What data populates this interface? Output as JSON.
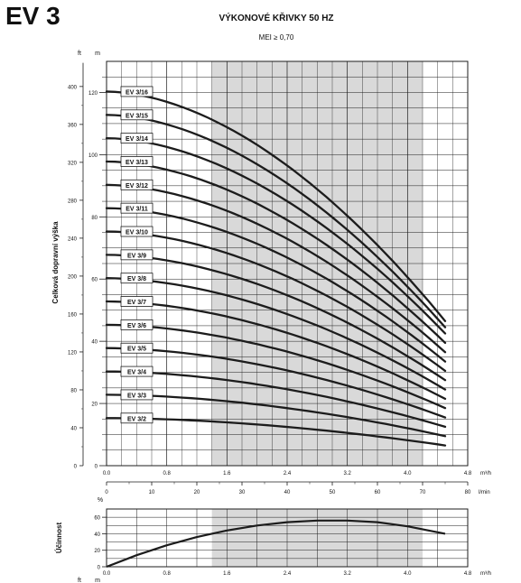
{
  "header": {
    "model": "EV 3",
    "title": "VÝKONOVÉ KŘIVKY 50 HZ",
    "subtitle": "MEI ≥ 0,70"
  },
  "colors": {
    "curve": "#1c1c1c",
    "grid": "#1c1c1c",
    "shade": "#d9d9d9",
    "background": "#ffffff"
  },
  "chart_data": [
    {
      "type": "line",
      "name": "head-curves",
      "ylabel": "Celková dopravní výška",
      "x_unit": "m³/h",
      "y_unit_left_outer": "ft",
      "y_unit_left_inner": "m",
      "xlim": [
        0,
        4.8
      ],
      "ylim": [
        0,
        130
      ],
      "x_ticks": [
        0.0,
        0.8,
        1.6,
        2.4,
        3.2,
        4.0,
        4.8
      ],
      "x_tick_labels": [
        "0.0",
        "0.8",
        "1.6",
        "2.4",
        "3.2",
        "4.0",
        "4.8"
      ],
      "y_ticks_m": [
        0,
        20,
        40,
        60,
        80,
        100,
        120
      ],
      "y_tick_labels_m": [
        "0",
        "20",
        "40",
        "60",
        "80",
        "100",
        "120"
      ],
      "y_ticks_ft": [
        0,
        40,
        80,
        120,
        160,
        200,
        240,
        280,
        320,
        360,
        400
      ],
      "y_tick_labels_ft": [
        "0",
        "40",
        "80",
        "120",
        "160",
        "200",
        "240",
        "280",
        "320",
        "360",
        "400"
      ],
      "secondary_x": {
        "unit": "l/min",
        "lim": [
          0,
          80
        ],
        "ticks": [
          0,
          10,
          20,
          30,
          40,
          50,
          60,
          70,
          80
        ],
        "tick_labels": [
          "0",
          "10",
          "20",
          "30",
          "40",
          "50",
          "60",
          "70",
          "80"
        ]
      },
      "recommended_range": [
        1.4,
        4.2
      ],
      "grid": true,
      "series": [
        {
          "name": "EV 3/2",
          "x": [
            0,
            4.5
          ],
          "shutoff_head": 15.3,
          "end_head": 6.5
        },
        {
          "name": "EV 3/3",
          "x": [
            0,
            4.5
          ],
          "shutoff_head": 22.8,
          "end_head": 9.5
        },
        {
          "name": "EV 3/4",
          "x": [
            0,
            4.5
          ],
          "shutoff_head": 30.3,
          "end_head": 12.5
        },
        {
          "name": "EV 3/5",
          "x": [
            0,
            4.5
          ],
          "shutoff_head": 37.8,
          "end_head": 15.5
        },
        {
          "name": "EV 3/6",
          "x": [
            0,
            4.5
          ],
          "shutoff_head": 45.3,
          "end_head": 18.5
        },
        {
          "name": "EV 3/7",
          "x": [
            0,
            4.5
          ],
          "shutoff_head": 52.8,
          "end_head": 21.5
        },
        {
          "name": "EV 3/8",
          "x": [
            0,
            4.5
          ],
          "shutoff_head": 60.3,
          "end_head": 24.5
        },
        {
          "name": "EV 3/9",
          "x": [
            0,
            4.5
          ],
          "shutoff_head": 67.8,
          "end_head": 27.5
        },
        {
          "name": "EV 3/10",
          "x": [
            0,
            4.5
          ],
          "shutoff_head": 75.3,
          "end_head": 30.5
        },
        {
          "name": "EV 3/11",
          "x": [
            0,
            4.5
          ],
          "shutoff_head": 82.8,
          "end_head": 33.5
        },
        {
          "name": "EV 3/12",
          "x": [
            0,
            4.5
          ],
          "shutoff_head": 90.3,
          "end_head": 36.5
        },
        {
          "name": "EV 3/13",
          "x": [
            0,
            4.5
          ],
          "shutoff_head": 97.8,
          "end_head": 39.5
        },
        {
          "name": "EV 3/14",
          "x": [
            0,
            4.5
          ],
          "shutoff_head": 105.3,
          "end_head": 42.5
        },
        {
          "name": "EV 3/15",
          "x": [
            0,
            4.5
          ],
          "shutoff_head": 112.8,
          "end_head": 44.5
        },
        {
          "name": "EV 3/16",
          "x": [
            0,
            4.5
          ],
          "shutoff_head": 120.3,
          "end_head": 46.5
        }
      ]
    },
    {
      "type": "line",
      "name": "efficiency-curve",
      "ylabel": "Účinnost",
      "y_unit": "%",
      "x_unit": "m³/h",
      "xlim": [
        0,
        4.8
      ],
      "ylim": [
        0,
        70
      ],
      "y_ticks": [
        0,
        20,
        40,
        60
      ],
      "y_tick_labels": [
        "0",
        "20",
        "40",
        "60"
      ],
      "x_ticks": [
        0.0,
        0.8,
        1.6,
        2.4,
        3.2,
        4.0,
        4.8
      ],
      "x_tick_labels": [
        "0.0",
        "0.8",
        "1.6",
        "2.4",
        "3.2",
        "4.0",
        "4.8"
      ],
      "recommended_range": [
        1.4,
        4.2
      ],
      "grid": true,
      "series": [
        {
          "name": "",
          "x": [
            0,
            0.4,
            0.8,
            1.2,
            1.6,
            2.0,
            2.4,
            2.8,
            3.2,
            3.6,
            4.0,
            4.5
          ],
          "y": [
            0,
            14,
            26,
            36,
            44,
            50,
            54,
            56,
            56,
            54,
            49,
            40
          ]
        }
      ]
    }
  ],
  "footer": {
    "unit_ft": "ft",
    "unit_m": "m"
  }
}
